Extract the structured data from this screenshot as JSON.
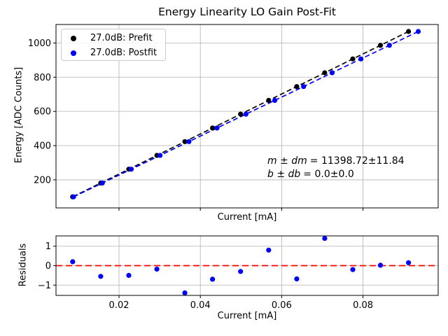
{
  "figure": {
    "background": "#ffffff",
    "grid_color": "#b0b0b0"
  },
  "chart_data": [
    {
      "type": "scatter",
      "title": "Energy Linearity LO Gain Post-Fit",
      "xlabel": "Current [mA]",
      "ylabel": "Energy [ADC Counts]",
      "xlim": [
        0.0045,
        0.0985
      ],
      "ylim": [
        36,
        1108
      ],
      "xticks": [
        0.02,
        0.04,
        0.06,
        0.08
      ],
      "yticks": [
        200,
        400,
        600,
        800,
        1000
      ],
      "show_x_tick_labels": false,
      "grid": true,
      "legend": {
        "position": "upper left",
        "entries": [
          {
            "label": "27.0dB: Prefit",
            "color": "#000000"
          },
          {
            "label": "27.0dB: Postfit",
            "color": "#0000ff"
          }
        ]
      },
      "annotation": {
        "lines": [
          {
            "lhs": "m ± dm",
            "rhs": "= 11398.72±11.84"
          },
          {
            "lhs": "b ± db",
            "rhs": "= 0.0±0.0"
          }
        ]
      },
      "series": [
        {
          "name": "27.0dB: Prefit",
          "color": "#000000",
          "marker": "o",
          "linestyle": "dashed",
          "x": [
            0.0086,
            0.0155,
            0.0224,
            0.0293,
            0.0362,
            0.043,
            0.0499,
            0.0568,
            0.0637,
            0.0706,
            0.0775,
            0.0843,
            0.0912
          ],
          "y": [
            100.6,
            181.3,
            262.1,
            342.8,
            423.5,
            503.0,
            583.7,
            664.4,
            745.1,
            825.8,
            906.5,
            986.2,
            1066.9
          ]
        },
        {
          "name": "27.0dB: Postfit",
          "color": "#0000ff",
          "marker": "o",
          "linestyle": "dashed",
          "x": [
            0.0088,
            0.0159,
            0.023,
            0.0301,
            0.0372,
            0.0441,
            0.0512,
            0.0583,
            0.0654,
            0.0724,
            0.0795,
            0.0865,
            0.0936
          ],
          "y": [
            100.6,
            181.3,
            262.1,
            342.8,
            423.5,
            503.0,
            583.7,
            664.4,
            745.1,
            825.8,
            906.5,
            986.2,
            1066.9
          ]
        }
      ]
    },
    {
      "type": "scatter",
      "title": "",
      "xlabel": "Current [mA]",
      "ylabel": "Residuals",
      "xlim": [
        0.0045,
        0.0985
      ],
      "ylim": [
        -1.53,
        1.53
      ],
      "xticks": [
        0.02,
        0.04,
        0.06,
        0.08
      ],
      "yticks": [
        -1,
        0,
        1
      ],
      "show_x_tick_labels": true,
      "grid": true,
      "ref_line": {
        "y": 0,
        "color": "#ff0000",
        "linestyle": "dashed"
      },
      "series": [
        {
          "name": "Residuals",
          "color": "#0000ff",
          "marker": "o",
          "linestyle": "none",
          "x": [
            0.0086,
            0.0155,
            0.0224,
            0.0293,
            0.0362,
            0.043,
            0.0499,
            0.0568,
            0.0637,
            0.0706,
            0.0775,
            0.0843,
            0.0912
          ],
          "y": [
            0.2,
            -0.55,
            -0.5,
            -0.18,
            -1.4,
            -0.7,
            -0.3,
            0.8,
            -0.68,
            1.4,
            -0.2,
            0.02,
            0.15
          ]
        }
      ]
    }
  ]
}
